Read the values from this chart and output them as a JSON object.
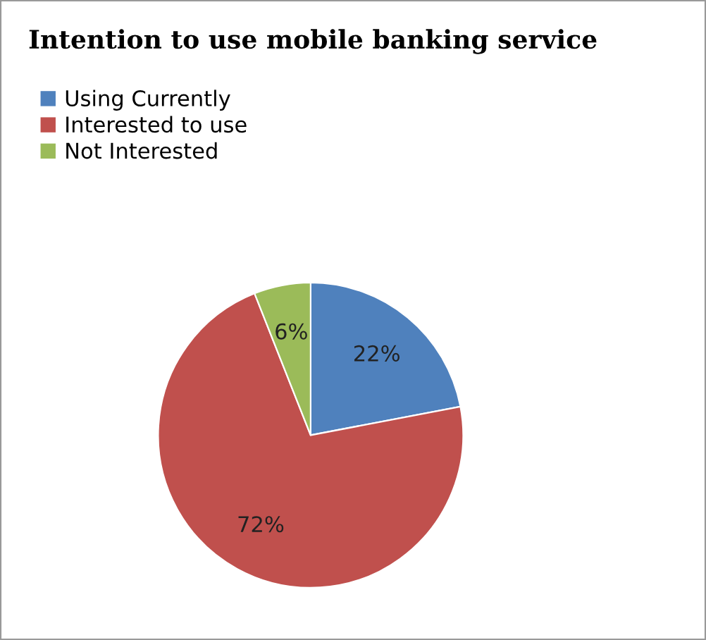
{
  "chart_data": {
    "type": "pie",
    "title": "Intention to use mobile banking service",
    "categories": [
      "Using Currently",
      "Interested to use",
      "Not Interested"
    ],
    "values": [
      22,
      72,
      6
    ],
    "colors": [
      "#4f81bd",
      "#c0504d",
      "#9bbb59"
    ],
    "value_labels": [
      "22%",
      "72%",
      "6%"
    ],
    "legend": "top left"
  }
}
